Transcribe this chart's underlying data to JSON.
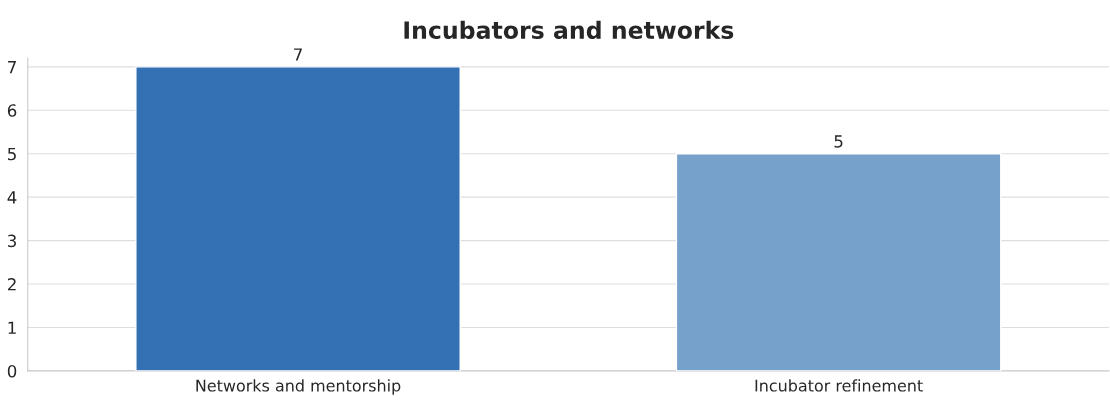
{
  "chart_data": {
    "type": "bar",
    "title": "Incubators and networks",
    "categories": [
      "Networks and mentorship",
      "Incubator refinement"
    ],
    "values": [
      7,
      5
    ],
    "colors": [
      "#3370b4",
      "#76a1cb"
    ],
    "ylim": [
      0,
      7.2
    ],
    "yticks": [
      0,
      1,
      2,
      3,
      4,
      5,
      6,
      7
    ],
    "grid": "y",
    "data_labels": true
  }
}
